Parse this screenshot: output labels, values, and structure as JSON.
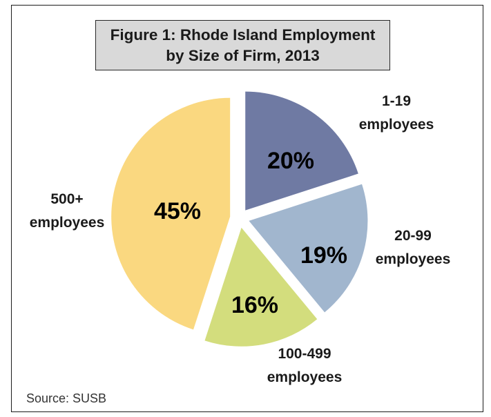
{
  "chart_data": {
    "type": "pie",
    "title_lines": [
      "Figure 1: Rhode Island Employment",
      "by Size of Firm, 2013"
    ],
    "slices": [
      {
        "label_lines": [
          "1-19",
          "employees"
        ],
        "value": 20,
        "value_label": "20%",
        "color": "#6f7aa3"
      },
      {
        "label_lines": [
          "20-99",
          "employees"
        ],
        "value": 19,
        "value_label": "19%",
        "color": "#a1b6ce"
      },
      {
        "label_lines": [
          "100-499",
          "employees"
        ],
        "value": 16,
        "value_label": "16%",
        "color": "#d3dd7d"
      },
      {
        "label_lines": [
          "500+",
          "employees"
        ],
        "value": 45,
        "value_label": "45%",
        "color": "#fad880"
      }
    ],
    "exploded": true,
    "source": "Source: SUSB"
  }
}
